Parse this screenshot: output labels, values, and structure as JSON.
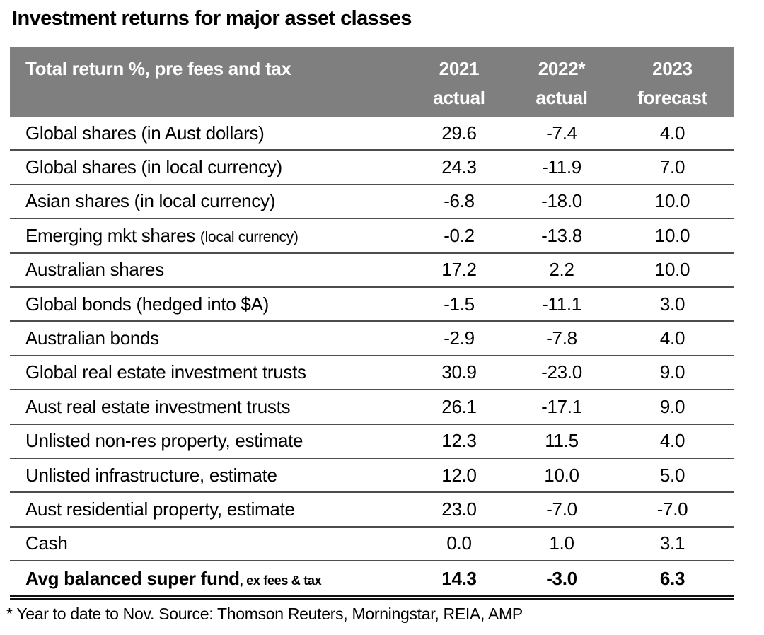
{
  "title": "Investment returns for major asset classes",
  "table": {
    "header": {
      "label": "Total return %, pre fees and tax",
      "columns": [
        {
          "year": "2021",
          "sub": "actual"
        },
        {
          "year": "2022*",
          "sub": "actual"
        },
        {
          "year": "2023",
          "sub": "forecast"
        }
      ]
    },
    "rows": [
      {
        "label": "Global shares (in Aust dollars)",
        "values": [
          "29.6",
          "-7.4",
          "4.0"
        ]
      },
      {
        "label": "Global shares (in local currency)",
        "values": [
          "24.3",
          "-11.9",
          "7.0"
        ]
      },
      {
        "label": "Asian shares (in local currency)",
        "values": [
          "-6.8",
          "-18.0",
          "10.0"
        ]
      },
      {
        "label": "Emerging mkt shares ",
        "label_small": "(local currency)",
        "values": [
          "-0.2",
          "-13.8",
          "10.0"
        ]
      },
      {
        "label": "Australian shares",
        "values": [
          "17.2",
          "2.2",
          "10.0"
        ]
      },
      {
        "label": "Global bonds (hedged into $A)",
        "values": [
          "-1.5",
          "-11.1",
          "3.0"
        ]
      },
      {
        "label": "Australian bonds",
        "values": [
          "-2.9",
          "-7.8",
          "4.0"
        ]
      },
      {
        "label": "Global real estate investment trusts",
        "values": [
          "30.9",
          "-23.0",
          "9.0"
        ]
      },
      {
        "label": "Aust real estate investment trusts",
        "values": [
          "26.1",
          "-17.1",
          "9.0"
        ]
      },
      {
        "label": "Unlisted non-res property, estimate",
        "values": [
          "12.3",
          "11.5",
          "4.0"
        ]
      },
      {
        "label": "Unlisted infrastructure, estimate",
        "values": [
          "12.0",
          "10.0",
          "5.0"
        ]
      },
      {
        "label": "Aust residential property, estimate",
        "values": [
          "23.0",
          "-7.0",
          "-7.0"
        ]
      },
      {
        "label": "Cash",
        "values": [
          "0.0",
          "1.0",
          "3.1"
        ]
      },
      {
        "label": "Avg balanced super fund",
        "label_suffix": ", ex fees & tax",
        "values": [
          "14.3",
          "-3.0",
          "6.3"
        ],
        "bold": true
      }
    ]
  },
  "footnote": "* Year to date to Nov. Source: Thomson Reuters, Morningstar, REIA, AMP",
  "colors": {
    "header_bg": "#7f7f7f",
    "header_text": "#ffffff",
    "row_divider": "#4d4d4d",
    "bottom_border": "#111111",
    "text": "#000000"
  },
  "chart_data": {
    "type": "table",
    "title": "Investment returns for major asset classes",
    "unit_note": "Total return %, pre fees and tax",
    "columns": [
      "2021 actual",
      "2022* actual",
      "2023 forecast"
    ],
    "rows": [
      {
        "asset": "Global shares (in Aust dollars)",
        "values": [
          29.6,
          -7.4,
          4.0
        ]
      },
      {
        "asset": "Global shares (in local currency)",
        "values": [
          24.3,
          -11.9,
          7.0
        ]
      },
      {
        "asset": "Asian shares (in local currency)",
        "values": [
          -6.8,
          -18.0,
          10.0
        ]
      },
      {
        "asset": "Emerging mkt shares (local currency)",
        "values": [
          -0.2,
          -13.8,
          10.0
        ]
      },
      {
        "asset": "Australian shares",
        "values": [
          17.2,
          2.2,
          10.0
        ]
      },
      {
        "asset": "Global bonds (hedged into $A)",
        "values": [
          -1.5,
          -11.1,
          3.0
        ]
      },
      {
        "asset": "Australian bonds",
        "values": [
          -2.9,
          -7.8,
          4.0
        ]
      },
      {
        "asset": "Global real estate investment trusts",
        "values": [
          30.9,
          -23.0,
          9.0
        ]
      },
      {
        "asset": "Aust real estate investment trusts",
        "values": [
          26.1,
          -17.1,
          9.0
        ]
      },
      {
        "asset": "Unlisted non-res property, estimate",
        "values": [
          12.3,
          11.5,
          4.0
        ]
      },
      {
        "asset": "Unlisted infrastructure, estimate",
        "values": [
          12.0,
          10.0,
          5.0
        ]
      },
      {
        "asset": "Aust residential property, estimate",
        "values": [
          23.0,
          -7.0,
          -7.0
        ]
      },
      {
        "asset": "Cash",
        "values": [
          0.0,
          1.0,
          3.1
        ]
      },
      {
        "asset": "Avg balanced super fund, ex fees & tax",
        "values": [
          14.3,
          -3.0,
          6.3
        ]
      }
    ],
    "footnote": "* Year to date to Nov. Source: Thomson Reuters, Morningstar, REIA, AMP"
  }
}
